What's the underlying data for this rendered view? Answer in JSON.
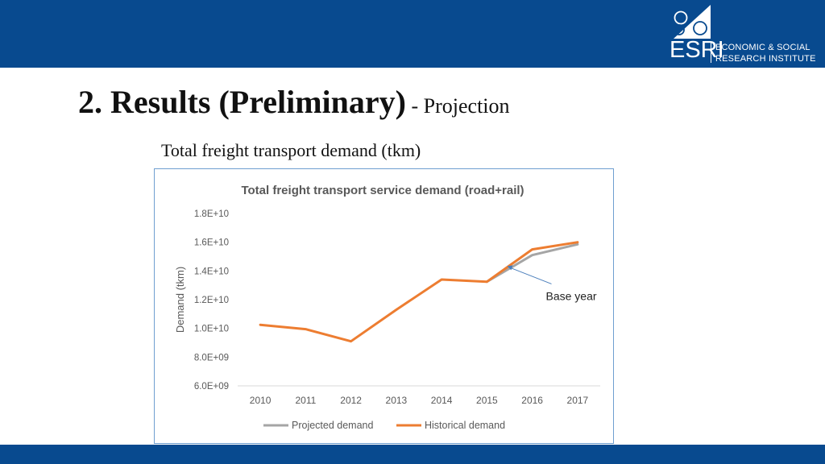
{
  "logo": {
    "abbr": "ESRI",
    "line1": "ECONOMIC & SOCIAL",
    "line2": "RESEARCH INSTITUTE"
  },
  "slide": {
    "title": "2. Results (Preliminary)",
    "title_suffix": " - Projection",
    "subtitle": "Total freight transport demand (tkm)"
  },
  "colors": {
    "band": "#084a8f",
    "projected": "#a5a5a5",
    "historical": "#ed7d31",
    "annotation_arrow": "#4a7ebb"
  },
  "chart_data": {
    "type": "line",
    "title": "Total freight transport service demand (road+rail)",
    "xlabel": "",
    "ylabel": "Demand (tkm)",
    "categories": [
      "2010",
      "2011",
      "2012",
      "2013",
      "2014",
      "2015",
      "2016",
      "2017"
    ],
    "ylim": [
      6000000000.0,
      18000000000.0
    ],
    "yticks": [
      6000000000.0,
      8000000000.0,
      10000000000.0,
      12000000000.0,
      14000000000.0,
      16000000000.0,
      18000000000.0
    ],
    "ytick_labels": [
      "6.0E+09",
      "8.0E+09",
      "1.0E+10",
      "1.2E+10",
      "1.4E+10",
      "1.6E+10",
      "1.8E+10"
    ],
    "grid": false,
    "legend_position": "bottom",
    "series": [
      {
        "name": "Projected demand",
        "color": "#a5a5a5",
        "values": [
          null,
          null,
          null,
          null,
          null,
          13250000000.0,
          15100000000.0,
          15850000000.0
        ]
      },
      {
        "name": "Historical demand",
        "color": "#ed7d31",
        "values": [
          10250000000.0,
          9950000000.0,
          9100000000.0,
          11300000000.0,
          13400000000.0,
          13250000000.0,
          15500000000.0,
          16000000000.0
        ]
      }
    ],
    "annotation": {
      "text": "Base year",
      "points_to": {
        "x": "2015",
        "y": 14500000000.0
      }
    }
  }
}
